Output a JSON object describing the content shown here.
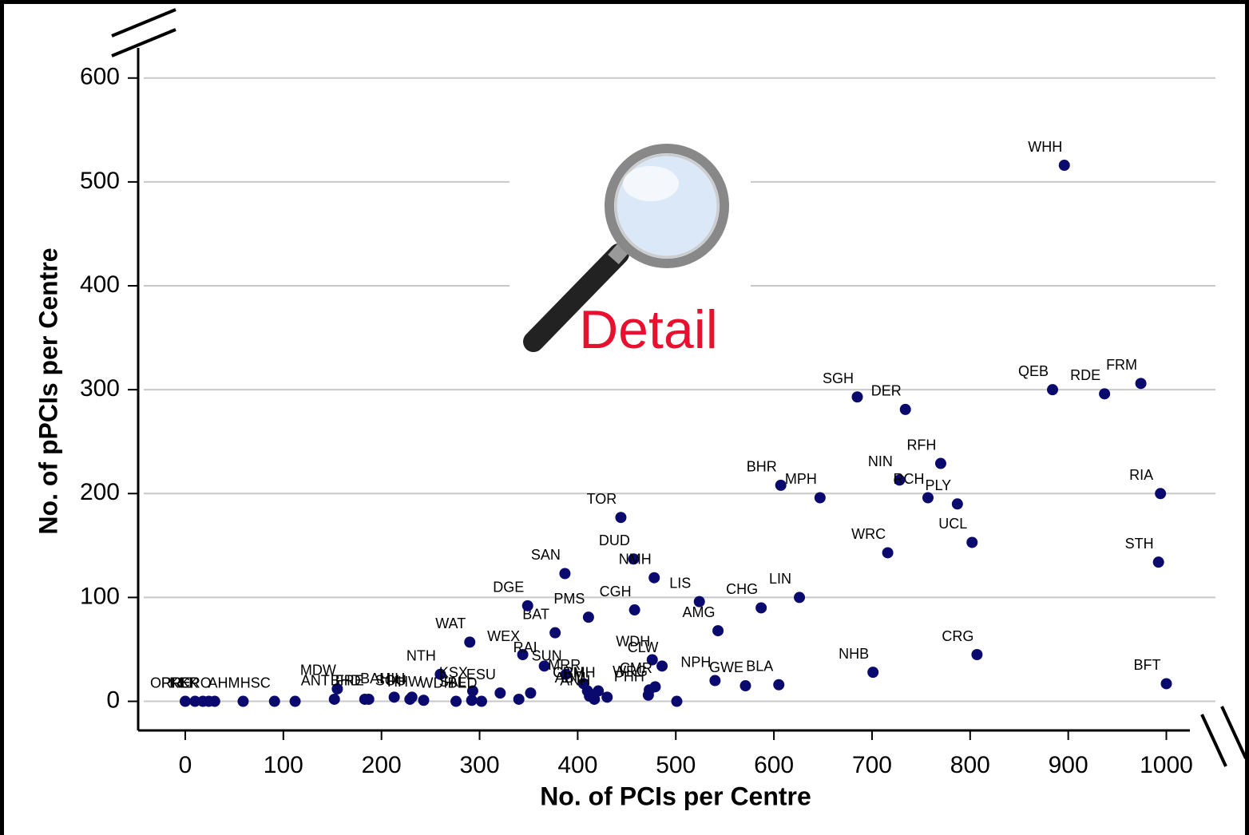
{
  "chart_data": {
    "type": "scatter",
    "xlabel": "No. of PCIs per Centre",
    "ylabel": "No. of pPCIs per Centre",
    "annotation": "Detail",
    "color": "#0a0a6e",
    "xlim": [
      -48,
      1024
    ],
    "ylim": [
      -28,
      629
    ],
    "xticks": [
      0,
      100,
      200,
      300,
      400,
      500,
      600,
      700,
      800,
      900,
      1000
    ],
    "yticks": [
      0,
      100,
      200,
      300,
      400,
      500,
      600
    ],
    "grid": true,
    "labels": [
      "ORR",
      "PRE",
      "KEK",
      "KP",
      "CRO",
      "AHM",
      "HSC",
      null,
      "ANT",
      "MDW",
      "BHD",
      "FRE",
      "BAH",
      "SOU",
      "HIH",
      "HHW",
      "WDH",
      "NTH",
      "KSX",
      "SAL",
      "BED",
      "ESU",
      null,
      null,
      "WEX",
      "RAI",
      "SUN",
      "MRR",
      "CRH",
      "ABM",
      "ANH",
      "RMH",
      null,
      "WDH",
      "CLW",
      "WRG",
      "CMR",
      "PHH",
      null,
      "WAT",
      "BAT",
      "DGE",
      "PMS",
      "CGH",
      "SAN",
      "TOR",
      "DUD",
      "NMH",
      "LIS",
      "AMG",
      "CHG",
      "LIN",
      "NPH",
      "GWE",
      "BLA",
      "NHB",
      "CRG",
      "BFT",
      "WRC",
      "UCL",
      "STH",
      "BHR",
      "MPH",
      "NIN",
      "RCH",
      "PLY",
      "RFH",
      "RIA",
      "SGH",
      "DER",
      "QEB",
      "RDE",
      "FRM",
      "WHH"
    ],
    "x": [
      0,
      10,
      18,
      24,
      30,
      59,
      91,
      112,
      152,
      155,
      183,
      187,
      213,
      229,
      231,
      243,
      276,
      260,
      293,
      292,
      302,
      321,
      340,
      352,
      344,
      366,
      388,
      406,
      410,
      412,
      417,
      421,
      430,
      476,
      486,
      473,
      479,
      472,
      501,
      290,
      377,
      349,
      411,
      458,
      387,
      444,
      457,
      478,
      524,
      543,
      587,
      626,
      540,
      571,
      605,
      701,
      807,
      1000,
      716,
      802,
      992,
      607,
      647,
      728,
      757,
      787,
      770,
      994,
      685,
      734,
      884,
      937,
      974,
      896
    ],
    "values": [
      0,
      0,
      0,
      0,
      0,
      0,
      0,
      0,
      2,
      12,
      2,
      2,
      4,
      2,
      4,
      1,
      0,
      26,
      10,
      1,
      0,
      8,
      2,
      8,
      45,
      34,
      26,
      17,
      10,
      5,
      2,
      10,
      4,
      40,
      34,
      11,
      14,
      6,
      0,
      57,
      66,
      92,
      81,
      88,
      123,
      177,
      137,
      119,
      96,
      68,
      90,
      100,
      20,
      15,
      16,
      28,
      45,
      17,
      143,
      153,
      134,
      208,
      196,
      213,
      196,
      190,
      229,
      200,
      293,
      281,
      300,
      296,
      306,
      516
    ]
  }
}
